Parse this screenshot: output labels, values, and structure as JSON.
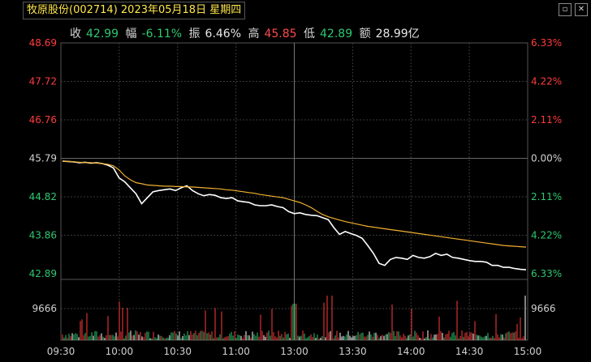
{
  "header": {
    "title": "牧原股份(002714) 2023年05月18日 星期四",
    "window_buttons": [
      "restore-icon",
      "close-icon"
    ],
    "quote": {
      "close_label": "收",
      "close_value": "42.99",
      "change_label": "幅",
      "change_value": "-6.11%",
      "amp_label": "振",
      "amp_value": "6.46%",
      "high_label": "高",
      "high_value": "45.85",
      "low_label": "低",
      "low_value": "42.89",
      "amount_label": "额",
      "amount_value": "28.99亿"
    }
  },
  "colors": {
    "up": "#ff3c3c",
    "down": "#2ec870",
    "price_line": "#ffffff",
    "avg_line": "#f0b030",
    "grid": "#3a3a3a"
  },
  "chart_data": {
    "type": "line",
    "prev_close": 45.79,
    "price_ticks": [
      "48.69",
      "47.72",
      "46.76",
      "45.79",
      "44.82",
      "43.86",
      "42.89"
    ],
    "pct_ticks": [
      "6.33%",
      "4.22%",
      "2.11%",
      "0.00%",
      "2.11%",
      "4.22%",
      "6.33%"
    ],
    "ylim": [
      42.89,
      48.69
    ],
    "volume_tick": "9666",
    "x_ticks": [
      "09:30",
      "10:00",
      "10:30",
      "11:00",
      "13:00",
      "13:30",
      "14:00",
      "14:30",
      "15:00"
    ],
    "series": [
      {
        "values": [
          45.72,
          45.71,
          45.7,
          45.68,
          45.69,
          45.67,
          45.68,
          45.66,
          45.62,
          45.55,
          45.3,
          45.2,
          45.05,
          44.9,
          44.65,
          44.8,
          44.95,
          44.98,
          45.0,
          45.02,
          44.98,
          45.05,
          45.1,
          44.98,
          44.9,
          44.85,
          44.88,
          44.86,
          44.8,
          44.78,
          44.8,
          44.72,
          44.7,
          44.68,
          44.62,
          44.6,
          44.6,
          44.62,
          44.58,
          44.55,
          44.45,
          44.4,
          44.42,
          44.38,
          44.36,
          44.35,
          44.3,
          44.25,
          44.05,
          43.88,
          43.95,
          43.9,
          43.85,
          43.78,
          43.6,
          43.4,
          43.15,
          43.1,
          43.25,
          43.3,
          43.28,
          43.25,
          43.35,
          43.3,
          43.28,
          43.32,
          43.4,
          43.35,
          43.38,
          43.3,
          43.28,
          43.25,
          43.22,
          43.2,
          43.2,
          43.18,
          43.1,
          43.1,
          43.05,
          43.05,
          43.02,
          43.0,
          42.99
        ]
      },
      {
        "values": [
          45.72,
          45.71,
          45.7,
          45.69,
          45.68,
          45.68,
          45.67,
          45.66,
          45.64,
          45.6,
          45.5,
          45.35,
          45.25,
          45.18,
          45.15,
          45.12,
          45.11,
          45.1,
          45.09,
          45.09,
          45.08,
          45.08,
          45.07,
          45.07,
          45.06,
          45.05,
          45.04,
          45.03,
          45.02,
          45.0,
          44.99,
          44.97,
          44.95,
          44.93,
          44.91,
          44.88,
          44.86,
          44.84,
          44.82,
          44.8,
          44.76,
          44.72,
          44.68,
          44.62,
          44.55,
          44.46,
          44.38,
          44.32,
          44.28,
          44.24,
          44.2,
          44.17,
          44.14,
          44.11,
          44.08,
          44.06,
          44.04,
          44.02,
          44.0,
          43.98,
          43.96,
          43.94,
          43.92,
          43.9,
          43.88,
          43.86,
          43.84,
          43.82,
          43.8,
          43.78,
          43.76,
          43.74,
          43.72,
          43.7,
          43.68,
          43.66,
          43.64,
          43.62,
          43.6,
          43.59,
          43.58,
          43.57,
          43.56
        ]
      }
    ]
  }
}
